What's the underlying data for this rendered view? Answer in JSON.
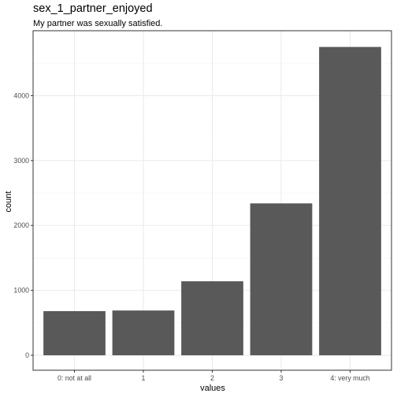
{
  "chart_data": {
    "type": "bar",
    "title": "sex_1_partner_enjoyed",
    "subtitle": "My partner was sexually satisfied.",
    "xlabel": "values",
    "ylabel": "count",
    "categories": [
      "0: not at all",
      "1",
      "2",
      "3",
      "4: very much"
    ],
    "values": [
      680,
      690,
      1140,
      2340,
      4750
    ],
    "ylim": [
      -230,
      5000
    ],
    "yticks": [
      0,
      1000,
      2000,
      3000,
      4000
    ],
    "ytick_labels": [
      "0",
      "1000",
      "2000",
      "3000",
      "4000"
    ],
    "grid": true,
    "colors": {
      "bar": "#595959",
      "panel_border": "#333333",
      "grid_major": "#ebebeb",
      "grid_minor": "#f5f5f5"
    }
  }
}
